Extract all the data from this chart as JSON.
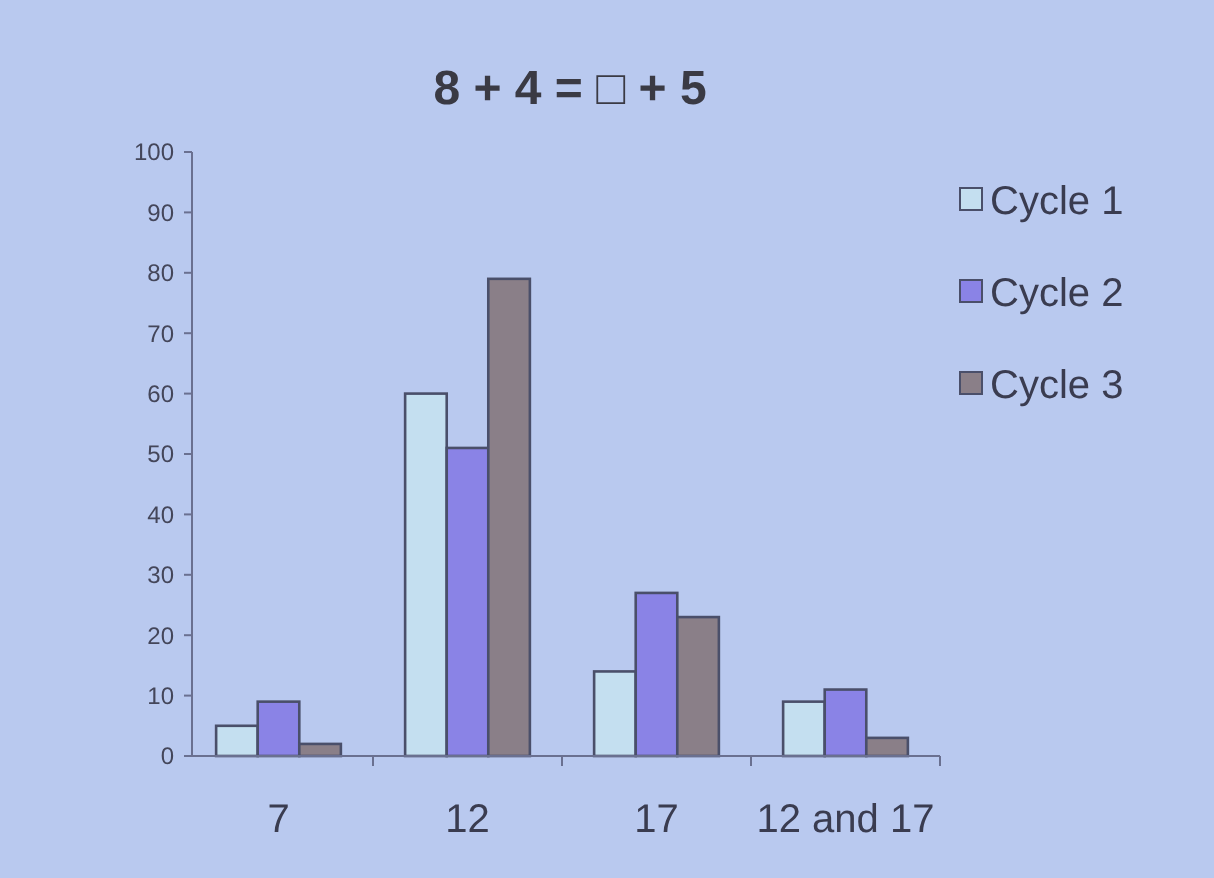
{
  "chart_data": {
    "type": "bar",
    "title": "8 + 4 = □ + 5",
    "categories": [
      "7",
      "12",
      "17",
      "12 and 17"
    ],
    "series": [
      {
        "name": "Cycle 1",
        "color": "#c4dff0",
        "values": [
          5,
          60,
          14,
          9
        ]
      },
      {
        "name": "Cycle 2",
        "color": "#8a83e6",
        "values": [
          9,
          51,
          27,
          11
        ]
      },
      {
        "name": "Cycle 3",
        "color": "#8a7f88",
        "values": [
          2,
          79,
          23,
          3
        ]
      }
    ],
    "ylim": [
      0,
      100
    ],
    "yticks": [
      0,
      10,
      20,
      30,
      40,
      50,
      60,
      70,
      80,
      90,
      100
    ],
    "legend": "top right"
  }
}
